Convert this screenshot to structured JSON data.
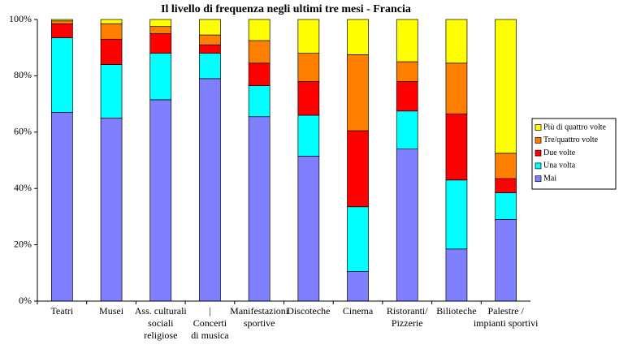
{
  "chart_data": {
    "type": "stacked_percent_bar",
    "title": "Il livello di frequenza negli ultimi tre mesi - Francia",
    "categories": [
      "Teatri",
      "Musei",
      "Ass. culturali\nsociali\nreligiose",
      "|\nConcerti\ndi musica",
      "Manifestazioni\nsportive",
      "Discoteche",
      "Cinema",
      "Ristoranti/\nPizzerie",
      "Bilioteche",
      "Palestre /\nimpianti sportivi"
    ],
    "series": [
      {
        "name": "Mai",
        "color": "#8080ff",
        "values": [
          67,
          65,
          71.5,
          79,
          65.5,
          51.5,
          10.5,
          54,
          18.5,
          29
        ]
      },
      {
        "name": "Una volta",
        "color": "#00ffff",
        "values": [
          26.5,
          19,
          16.5,
          9,
          11,
          14.5,
          23,
          13.5,
          24.5,
          9.5
        ]
      },
      {
        "name": "Due volte",
        "color": "#ff0000",
        "values": [
          5,
          9,
          7,
          3,
          8,
          12,
          27,
          10.5,
          23.5,
          5
        ]
      },
      {
        "name": "Tre/quattro volte",
        "color": "#ff8000",
        "values": [
          1,
          5.5,
          2.5,
          3.5,
          8,
          10,
          27,
          7,
          18,
          9
        ]
      },
      {
        "name": "Più di quattro volte",
        "color": "#ffff00",
        "values": [
          0.5,
          1.5,
          2.5,
          5.5,
          7.5,
          12,
          12.5,
          15,
          15.5,
          47.5
        ]
      }
    ],
    "ylim": [
      0,
      100
    ],
    "yticks": [
      {
        "value": 0,
        "label": "0%"
      },
      {
        "value": 20,
        "label": "20%"
      },
      {
        "value": 40,
        "label": "40%"
      },
      {
        "value": 60,
        "label": "60%"
      },
      {
        "value": 80,
        "label": "80%"
      },
      {
        "value": 100,
        "label": "100%"
      }
    ],
    "grid": false,
    "legend": "right"
  }
}
